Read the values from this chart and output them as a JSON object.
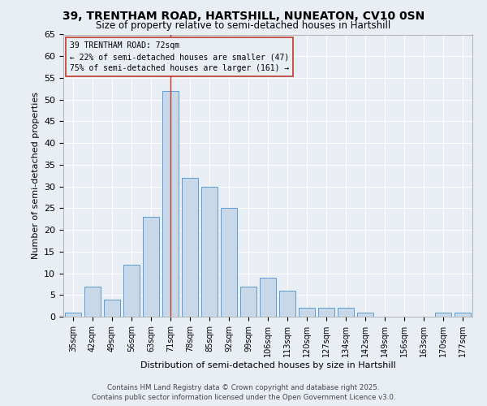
{
  "title": "39, TRENTHAM ROAD, HARTSHILL, NUNEATON, CV10 0SN",
  "subtitle": "Size of property relative to semi-detached houses in Hartshill",
  "xlabel": "Distribution of semi-detached houses by size in Hartshill",
  "ylabel": "Number of semi-detached properties",
  "categories": [
    "35sqm",
    "42sqm",
    "49sqm",
    "56sqm",
    "63sqm",
    "71sqm",
    "78sqm",
    "85sqm",
    "92sqm",
    "99sqm",
    "106sqm",
    "113sqm",
    "120sqm",
    "127sqm",
    "134sqm",
    "142sqm",
    "149sqm",
    "156sqm",
    "163sqm",
    "170sqm",
    "177sqm"
  ],
  "values": [
    1,
    7,
    4,
    12,
    23,
    52,
    32,
    30,
    25,
    7,
    9,
    6,
    2,
    2,
    2,
    1,
    0,
    0,
    0,
    1,
    1
  ],
  "bar_color": "#c8d8e8",
  "bar_edge_color": "#5b9bd5",
  "highlight_index": 5,
  "highlight_line_color": "#c0392b",
  "ylim": [
    0,
    65
  ],
  "yticks": [
    0,
    5,
    10,
    15,
    20,
    25,
    30,
    35,
    40,
    45,
    50,
    55,
    60,
    65
  ],
  "annotation_title": "39 TRENTHAM ROAD: 72sqm",
  "annotation_line1": "← 22% of semi-detached houses are smaller (47)",
  "annotation_line2": "75% of semi-detached houses are larger (161) →",
  "footer_line1": "Contains HM Land Registry data © Crown copyright and database right 2025.",
  "footer_line2": "Contains public sector information licensed under the Open Government Licence v3.0.",
  "background_color": "#e8eef4",
  "grid_color": "#ffffff"
}
